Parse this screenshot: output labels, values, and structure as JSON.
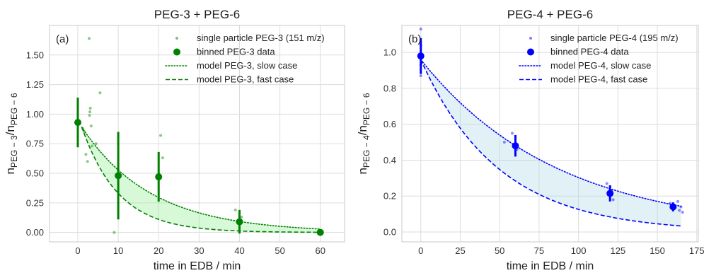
{
  "chart_data": [
    {
      "type": "scatter",
      "panel_label": "(a)",
      "title": "PEG-3 + PEG-6",
      "xlabel": "time in EDB / min",
      "ylabel": {
        "base": "n",
        "num_sub": "PEG − 3",
        "sep": "/n",
        "den_sub": "PEG − 6"
      },
      "xlim": [
        -7,
        66
      ],
      "ylim": [
        -0.08,
        1.75
      ],
      "xticks": [
        0,
        10,
        20,
        30,
        40,
        50,
        60
      ],
      "yticks": [
        0.0,
        0.25,
        0.5,
        0.75,
        1.0,
        1.25,
        1.5
      ],
      "ytick_labels": [
        "0.00",
        "0.25",
        "0.50",
        "0.75",
        "1.00",
        "1.25",
        "1.50"
      ],
      "grid": true,
      "legend_position": "top-right",
      "color": "#008000",
      "fill_color": "#90ee90",
      "legend": [
        {
          "label": "single particle PEG-3 (151 m/z)",
          "kind": "small-dot"
        },
        {
          "label": "binned PEG-3 data",
          "kind": "big-dot"
        },
        {
          "label": "model PEG-3, slow case",
          "kind": "dotted"
        },
        {
          "label": "model PEG-3, fast case",
          "kind": "dashed"
        }
      ],
      "single_particle": [
        [
          0.5,
          0.93
        ],
        [
          1.2,
          0.88
        ],
        [
          1.6,
          0.85
        ],
        [
          2.0,
          0.66
        ],
        [
          2.4,
          0.6
        ],
        [
          2.8,
          1.64
        ],
        [
          2.9,
          0.99
        ],
        [
          3.0,
          1.02
        ],
        [
          3.1,
          1.05
        ],
        [
          3.3,
          0.9
        ],
        [
          3.5,
          0.73
        ],
        [
          4.5,
          0.75
        ],
        [
          5.5,
          1.18
        ],
        [
          9.0,
          0.0
        ],
        [
          20.5,
          0.82
        ],
        [
          21.0,
          0.63
        ],
        [
          39.0,
          0.19
        ],
        [
          40.5,
          0.13
        ],
        [
          59.5,
          0.01
        ],
        [
          60.5,
          0.01
        ]
      ],
      "binned": [
        {
          "x": 0,
          "y": 0.93,
          "err": 0.21
        },
        {
          "x": 10,
          "y": 0.48,
          "err": 0.37
        },
        {
          "x": 20,
          "y": 0.47,
          "err": 0.21
        },
        {
          "x": 40,
          "y": 0.09,
          "err": 0.1
        },
        {
          "x": 60,
          "y": 0.0,
          "err": 0.01
        }
      ],
      "model_slow": {
        "y0": 0.89,
        "x_start": 1,
        "x_end": 60,
        "rate": 0.058
      },
      "model_fast": {
        "y0": 0.89,
        "x_start": 1,
        "x_end": 60,
        "rate": 0.11
      }
    },
    {
      "type": "scatter",
      "panel_label": "(b)",
      "title": "PEG-4 + PEG-6",
      "xlabel": "time in EDB / min",
      "ylabel": {
        "base": "n",
        "num_sub": "PEG − 4",
        "sep": "/n",
        "den_sub": "PEG − 6"
      },
      "xlim": [
        -12,
        176
      ],
      "ylim": [
        -0.055,
        1.15
      ],
      "xticks": [
        0,
        25,
        50,
        75,
        100,
        125,
        150,
        175
      ],
      "yticks": [
        0.0,
        0.2,
        0.4,
        0.6,
        0.8,
        1.0
      ],
      "ytick_labels": [
        "0.0",
        "0.2",
        "0.4",
        "0.6",
        "0.8",
        "1.0"
      ],
      "grid": true,
      "legend_position": "top-right",
      "color": "#0000ff",
      "fill_color": "#add8e6",
      "legend": [
        {
          "label": "single particle PEG-4 (195 m/z)",
          "kind": "small-dot"
        },
        {
          "label": "binned PEG-4 data",
          "kind": "big-dot"
        },
        {
          "label": "model PEG-4, slow case",
          "kind": "dotted"
        },
        {
          "label": "model PEG-4, fast case",
          "kind": "dashed"
        }
      ],
      "single_particle": [
        [
          0,
          1.13
        ],
        [
          0,
          1.04
        ],
        [
          0,
          0.93
        ],
        [
          0,
          0.87
        ],
        [
          53,
          0.5
        ],
        [
          58,
          0.55
        ],
        [
          61,
          0.46
        ],
        [
          118,
          0.27
        ],
        [
          121,
          0.23
        ],
        [
          122,
          0.18
        ],
        [
          158,
          0.16
        ],
        [
          163,
          0.17
        ],
        [
          164,
          0.12
        ],
        [
          165,
          0.14
        ],
        [
          166,
          0.11
        ]
      ],
      "binned": [
        {
          "x": 0,
          "y": 0.98,
          "err": 0.1
        },
        {
          "x": 60,
          "y": 0.48,
          "err": 0.06
        },
        {
          "x": 120,
          "y": 0.215,
          "err": 0.045
        },
        {
          "x": 160,
          "y": 0.14,
          "err": 0.025
        }
      ],
      "model_slow": {
        "y0": 0.96,
        "x_start": 0,
        "x_end": 165,
        "rate": 0.01152
      },
      "model_fast": {
        "y0": 0.96,
        "x_start": 0,
        "x_end": 165,
        "rate": 0.0203
      }
    }
  ]
}
